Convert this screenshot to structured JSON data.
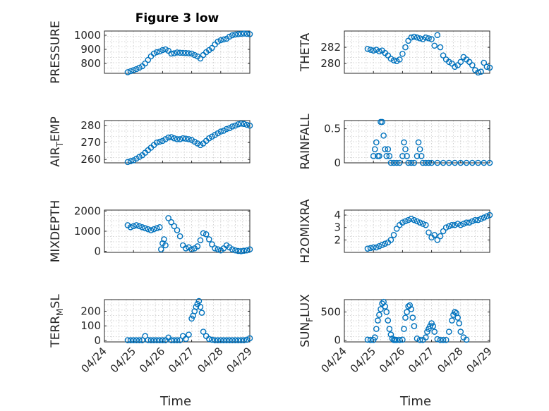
{
  "figure": {
    "title": "Figure 3 low",
    "marker_color": "#0072BD",
    "axis_color": "#262626",
    "grid": "on"
  },
  "chart_data": [
    {
      "type": "scatter",
      "ylabel": "PRESSURE",
      "xlabel": "",
      "ylim": [
        730,
        1030
      ],
      "yticks": [
        800,
        900,
        1000
      ],
      "xticks": [
        "04/24",
        "04/25",
        "04/26",
        "04/27",
        "04/28",
        "04/29"
      ],
      "xlim": [
        0,
        5
      ],
      "x": [
        0.8,
        0.9,
        1.0,
        1.1,
        1.2,
        1.3,
        1.4,
        1.5,
        1.6,
        1.7,
        1.8,
        1.9,
        2.0,
        2.1,
        2.2,
        2.3,
        2.4,
        2.5,
        2.6,
        2.7,
        2.8,
        2.9,
        3.0,
        3.1,
        3.2,
        3.3,
        3.4,
        3.5,
        3.6,
        3.7,
        3.8,
        3.9,
        4.0,
        4.1,
        4.2,
        4.3,
        4.4,
        4.5,
        4.6,
        4.7,
        4.8,
        4.9,
        5.0
      ],
      "y": [
        738,
        745,
        752,
        760,
        770,
        780,
        800,
        825,
        850,
        870,
        880,
        885,
        895,
        900,
        890,
        870,
        872,
        878,
        876,
        875,
        874,
        872,
        870,
        860,
        850,
        835,
        860,
        880,
        895,
        910,
        935,
        955,
        965,
        970,
        975,
        990,
        1000,
        1005,
        1008,
        1010,
        1012,
        1010,
        1008
      ]
    },
    {
      "type": "scatter",
      "ylabel": "THETA",
      "xlabel": "",
      "ylim": [
        278.8,
        284.0
      ],
      "yticks": [
        280,
        282
      ],
      "xticks": [
        "04/24",
        "04/25",
        "04/26",
        "04/27",
        "04/28",
        "04/29"
      ],
      "xlim": [
        0,
        5
      ],
      "x": [
        0.8,
        0.9,
        1.0,
        1.1,
        1.2,
        1.3,
        1.4,
        1.5,
        1.6,
        1.7,
        1.8,
        1.9,
        2.0,
        2.1,
        2.2,
        2.3,
        2.4,
        2.5,
        2.6,
        2.7,
        2.8,
        2.9,
        3.0,
        3.1,
        3.2,
        3.3,
        3.4,
        3.5,
        3.6,
        3.7,
        3.8,
        3.9,
        4.0,
        4.1,
        4.2,
        4.3,
        4.4,
        4.5,
        4.6,
        4.7,
        4.8,
        4.9,
        5.0
      ],
      "y": [
        281.8,
        281.7,
        281.6,
        281.7,
        281.5,
        281.6,
        281.3,
        281.0,
        280.6,
        280.4,
        280.3,
        280.5,
        281.2,
        282.0,
        282.8,
        283.2,
        283.3,
        283.2,
        283.1,
        283.0,
        283.2,
        283.1,
        283.0,
        282.2,
        283.5,
        282.0,
        281.0,
        280.5,
        280.2,
        280.0,
        279.6,
        279.8,
        280.2,
        280.8,
        280.5,
        280.2,
        279.8,
        279.2,
        278.9,
        279.0,
        280.1,
        279.6,
        279.5
      ]
    },
    {
      "type": "scatter",
      "ylabel": "AIR_TEMP",
      "xlabel": "",
      "ylim": [
        258,
        283
      ],
      "yticks": [
        260,
        270,
        280
      ],
      "xticks": [
        "04/24",
        "04/25",
        "04/26",
        "04/27",
        "04/28",
        "04/29"
      ],
      "xlim": [
        0,
        5
      ],
      "x": [
        0.8,
        0.9,
        1.0,
        1.1,
        1.2,
        1.3,
        1.4,
        1.5,
        1.6,
        1.7,
        1.8,
        1.9,
        2.0,
        2.1,
        2.2,
        2.3,
        2.4,
        2.5,
        2.6,
        2.7,
        2.8,
        2.9,
        3.0,
        3.1,
        3.2,
        3.3,
        3.4,
        3.5,
        3.6,
        3.7,
        3.8,
        3.9,
        4.0,
        4.1,
        4.2,
        4.3,
        4.4,
        4.5,
        4.6,
        4.7,
        4.8,
        4.9,
        5.0
      ],
      "y": [
        258.5,
        259,
        259.5,
        260.5,
        261.5,
        262.5,
        264,
        265.5,
        267,
        268.5,
        270,
        270.5,
        271,
        272,
        273,
        273.2,
        272.5,
        272,
        272,
        272.5,
        272.3,
        272,
        271.5,
        270.5,
        269.5,
        268.5,
        269.5,
        271,
        272.5,
        273.5,
        274.5,
        275.5,
        276.5,
        277,
        278,
        278.5,
        279.5,
        280,
        280.8,
        281.2,
        281,
        280.5,
        280
      ]
    },
    {
      "type": "scatter",
      "ylabel": "RAINFALL",
      "xlabel": "",
      "ylim": [
        0,
        0.62
      ],
      "yticks": [
        0,
        0.5
      ],
      "xticks": [
        "04/24",
        "04/25",
        "04/26",
        "04/27",
        "04/28",
        "04/29"
      ],
      "xlim": [
        0,
        5
      ],
      "x": [
        1.0,
        1.05,
        1.1,
        1.15,
        1.2,
        1.25,
        1.3,
        1.35,
        1.4,
        1.45,
        1.5,
        1.55,
        1.6,
        1.7,
        1.8,
        1.9,
        2.0,
        2.05,
        2.1,
        2.15,
        2.2,
        2.3,
        2.4,
        2.5,
        2.55,
        2.6,
        2.65,
        2.7,
        2.8,
        2.9,
        3.0,
        3.2,
        3.4,
        3.6,
        3.8,
        4.0,
        4.2,
        4.4,
        4.6,
        4.8,
        5.0
      ],
      "y": [
        0.1,
        0.2,
        0.3,
        0.1,
        0.1,
        0.6,
        0.6,
        0.4,
        0.2,
        0.1,
        0.2,
        0.1,
        0.0,
        0.0,
        0.0,
        0.0,
        0.1,
        0.3,
        0.2,
        0.1,
        0.0,
        0.0,
        0.0,
        0.1,
        0.3,
        0.2,
        0.1,
        0.0,
        0.0,
        0.0,
        0.0,
        0.0,
        0.0,
        0.0,
        0.0,
        0.0,
        0.0,
        0.0,
        0.0,
        0.0,
        0.0
      ]
    },
    {
      "type": "scatter",
      "ylabel": "MIXDEPTH",
      "xlabel": "",
      "ylim": [
        -50,
        2050
      ],
      "yticks": [
        0,
        1000,
        2000
      ],
      "xticks": [
        "04/24",
        "04/25",
        "04/26",
        "04/27",
        "04/28",
        "04/29"
      ],
      "xlim": [
        0,
        5
      ],
      "x": [
        0.8,
        0.9,
        1.0,
        1.1,
        1.2,
        1.3,
        1.4,
        1.5,
        1.6,
        1.7,
        1.8,
        1.9,
        1.95,
        2.0,
        2.05,
        2.1,
        2.2,
        2.3,
        2.4,
        2.5,
        2.6,
        2.7,
        2.8,
        2.9,
        3.0,
        3.1,
        3.2,
        3.3,
        3.4,
        3.5,
        3.6,
        3.7,
        3.8,
        3.9,
        4.0,
        4.1,
        4.2,
        4.3,
        4.4,
        4.5,
        4.6,
        4.7,
        4.8,
        4.9,
        5.0
      ],
      "y": [
        1300,
        1200,
        1250,
        1300,
        1250,
        1200,
        1150,
        1100,
        1050,
        1100,
        1150,
        1200,
        100,
        400,
        600,
        300,
        1650,
        1450,
        1250,
        1050,
        750,
        300,
        150,
        200,
        100,
        150,
        250,
        550,
        900,
        850,
        600,
        350,
        150,
        100,
        50,
        150,
        300,
        200,
        100,
        50,
        20,
        10,
        30,
        50,
        100
      ]
    },
    {
      "type": "scatter",
      "ylabel": "H2OMIXRA",
      "xlabel": "",
      "ylim": [
        1.0,
        4.4
      ],
      "yticks": [
        2,
        3,
        4
      ],
      "xticks": [
        "04/24",
        "04/25",
        "04/26",
        "04/27",
        "04/28",
        "04/29"
      ],
      "xlim": [
        0,
        5
      ],
      "x": [
        0.8,
        0.9,
        1.0,
        1.1,
        1.2,
        1.3,
        1.4,
        1.5,
        1.6,
        1.7,
        1.8,
        1.9,
        2.0,
        2.1,
        2.2,
        2.3,
        2.4,
        2.5,
        2.6,
        2.7,
        2.8,
        2.9,
        3.0,
        3.1,
        3.2,
        3.3,
        3.4,
        3.5,
        3.6,
        3.7,
        3.8,
        3.9,
        4.0,
        4.1,
        4.2,
        4.3,
        4.4,
        4.5,
        4.6,
        4.7,
        4.8,
        4.9,
        5.0
      ],
      "y": [
        1.3,
        1.35,
        1.4,
        1.4,
        1.5,
        1.6,
        1.7,
        1.8,
        2.0,
        2.4,
        2.9,
        3.2,
        3.4,
        3.5,
        3.6,
        3.7,
        3.6,
        3.5,
        3.4,
        3.3,
        3.2,
        2.6,
        2.2,
        2.4,
        2.0,
        2.3,
        2.7,
        3.0,
        3.1,
        3.2,
        3.2,
        3.3,
        3.2,
        3.3,
        3.4,
        3.4,
        3.5,
        3.6,
        3.6,
        3.7,
        3.8,
        3.9,
        4.0
      ]
    },
    {
      "type": "scatter",
      "ylabel": "TERR_MSL",
      "xlabel": "Time",
      "ylim": [
        -10,
        280
      ],
      "yticks": [
        0,
        100,
        200
      ],
      "xticks": [
        "04/24",
        "04/25",
        "04/26",
        "04/27",
        "04/28",
        "04/29"
      ],
      "xlim": [
        0,
        5
      ],
      "x": [
        0.8,
        0.9,
        1.0,
        1.1,
        1.2,
        1.3,
        1.4,
        1.5,
        1.6,
        1.7,
        1.8,
        1.9,
        2.0,
        2.1,
        2.2,
        2.3,
        2.4,
        2.5,
        2.6,
        2.7,
        2.8,
        2.9,
        3.0,
        3.05,
        3.1,
        3.15,
        3.2,
        3.25,
        3.3,
        3.35,
        3.4,
        3.5,
        3.6,
        3.7,
        3.8,
        3.9,
        4.0,
        4.1,
        4.2,
        4.3,
        4.4,
        4.5,
        4.6,
        4.7,
        4.8,
        4.9,
        5.0
      ],
      "y": [
        2,
        2,
        2,
        2,
        2,
        2,
        30,
        3,
        2,
        2,
        2,
        2,
        2,
        2,
        20,
        2,
        2,
        2,
        2,
        30,
        10,
        40,
        150,
        170,
        200,
        230,
        250,
        270,
        230,
        190,
        60,
        30,
        10,
        5,
        2,
        2,
        2,
        2,
        2,
        2,
        2,
        2,
        2,
        2,
        2,
        5,
        15
      ]
    },
    {
      "type": "scatter",
      "ylabel": "SUN_FLUX",
      "xlabel": "Time",
      "ylim": [
        -30,
        720
      ],
      "yticks": [
        0,
        500
      ],
      "xticks": [
        "04/24",
        "04/25",
        "04/26",
        "04/27",
        "04/28",
        "04/29"
      ],
      "xlim": [
        0,
        5
      ],
      "x": [
        0.8,
        0.9,
        1.0,
        1.05,
        1.1,
        1.15,
        1.2,
        1.25,
        1.3,
        1.35,
        1.4,
        1.45,
        1.5,
        1.55,
        1.6,
        1.65,
        1.7,
        1.75,
        1.8,
        1.9,
        2.0,
        2.05,
        2.1,
        2.15,
        2.2,
        2.25,
        2.3,
        2.35,
        2.4,
        2.5,
        2.6,
        2.7,
        2.8,
        2.85,
        2.9,
        2.95,
        3.0,
        3.05,
        3.1,
        3.2,
        3.3,
        3.4,
        3.5,
        3.6,
        3.7,
        3.75,
        3.8,
        3.85,
        3.9,
        3.95,
        4.0,
        4.1,
        4.2
      ],
      "y": [
        10,
        5,
        5,
        50,
        200,
        350,
        450,
        550,
        650,
        680,
        600,
        500,
        350,
        200,
        100,
        30,
        5,
        5,
        5,
        5,
        10,
        200,
        400,
        500,
        600,
        620,
        550,
        400,
        250,
        30,
        5,
        5,
        50,
        150,
        200,
        250,
        300,
        250,
        150,
        20,
        5,
        5,
        5,
        150,
        350,
        450,
        500,
        480,
        400,
        300,
        150,
        50,
        10
      ]
    }
  ]
}
